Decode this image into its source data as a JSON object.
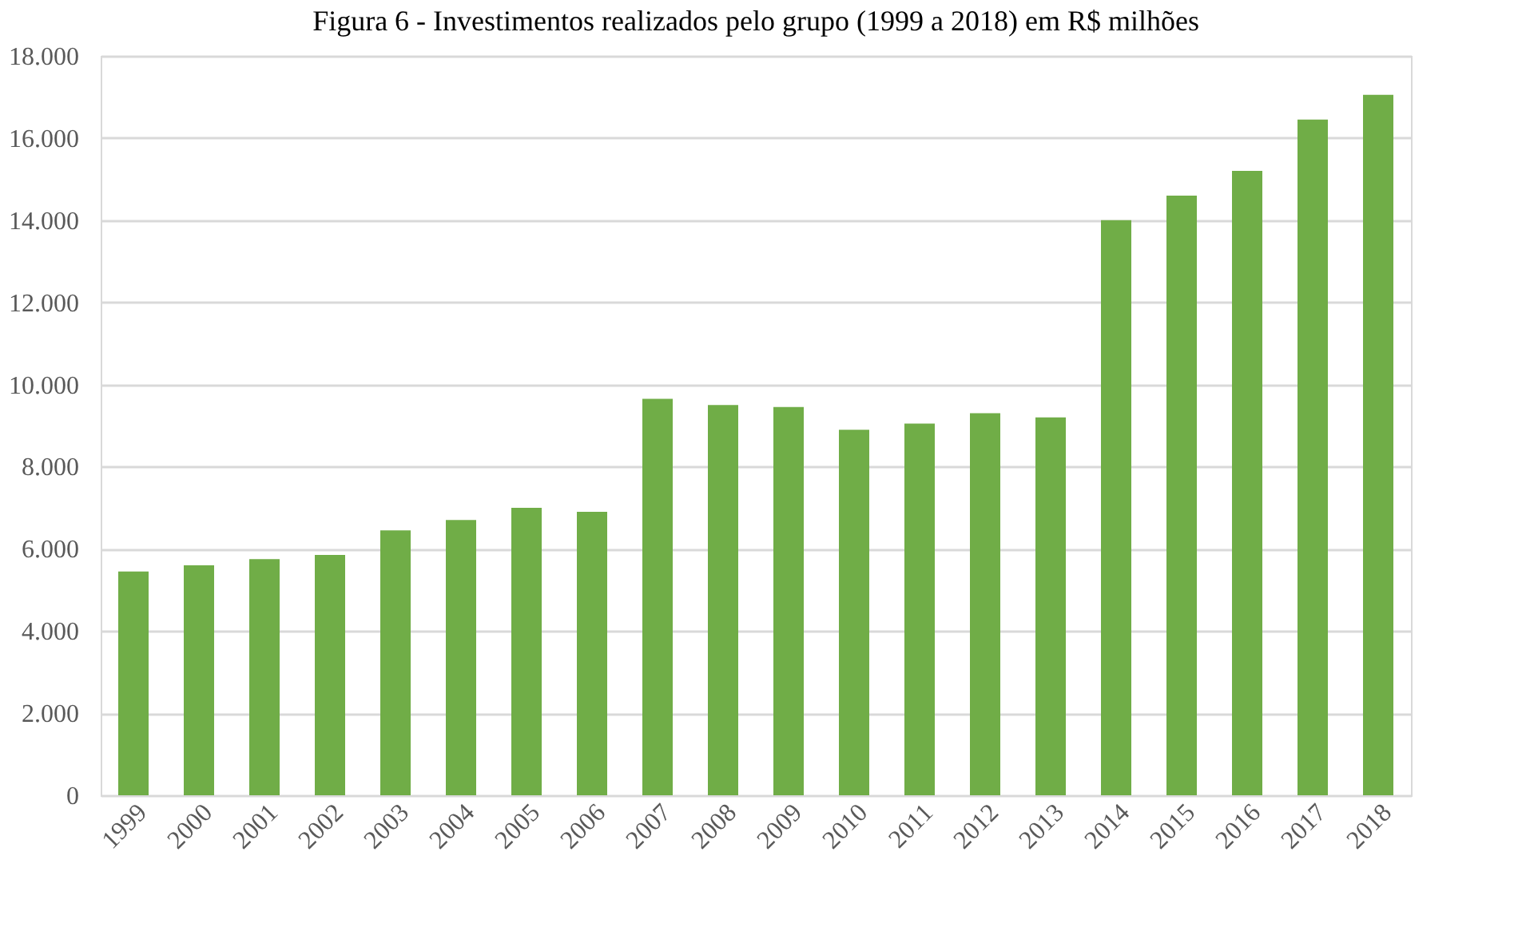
{
  "chart_data": {
    "type": "bar",
    "title": "Figura 6 - Investimentos realizados pelo grupo (1999 a 2018) em R$ milhões",
    "categories": [
      "1999",
      "2000",
      "2001",
      "2002",
      "2003",
      "2004",
      "2005",
      "2006",
      "2007",
      "2008",
      "2009",
      "2010",
      "2011",
      "2012",
      "2013",
      "2014",
      "2015",
      "2016",
      "2017",
      "2018"
    ],
    "values": [
      5450,
      5600,
      5750,
      5850,
      6450,
      6700,
      7000,
      6900,
      9650,
      9500,
      9450,
      8900,
      9050,
      9300,
      9200,
      14000,
      14600,
      15200,
      16450,
      17050
    ],
    "color": "#70ad47",
    "ylim": [
      0,
      18000
    ],
    "yticks": [
      0,
      {
        "value": 2000,
        "label": "2.000"
      },
      {
        "value": 4000,
        "label": "4.000"
      },
      {
        "value": 6000,
        "label": "6.000"
      },
      {
        "value": 8000,
        "label": "8.000"
      },
      {
        "value": 10000,
        "label": "10.000"
      },
      {
        "value": 12000,
        "label": "12.000"
      },
      {
        "value": 14000,
        "label": "14.000"
      },
      {
        "value": 16000,
        "label": "16.000"
      },
      {
        "value": 18000,
        "label": "18.000"
      }
    ],
    "grid": "y"
  }
}
